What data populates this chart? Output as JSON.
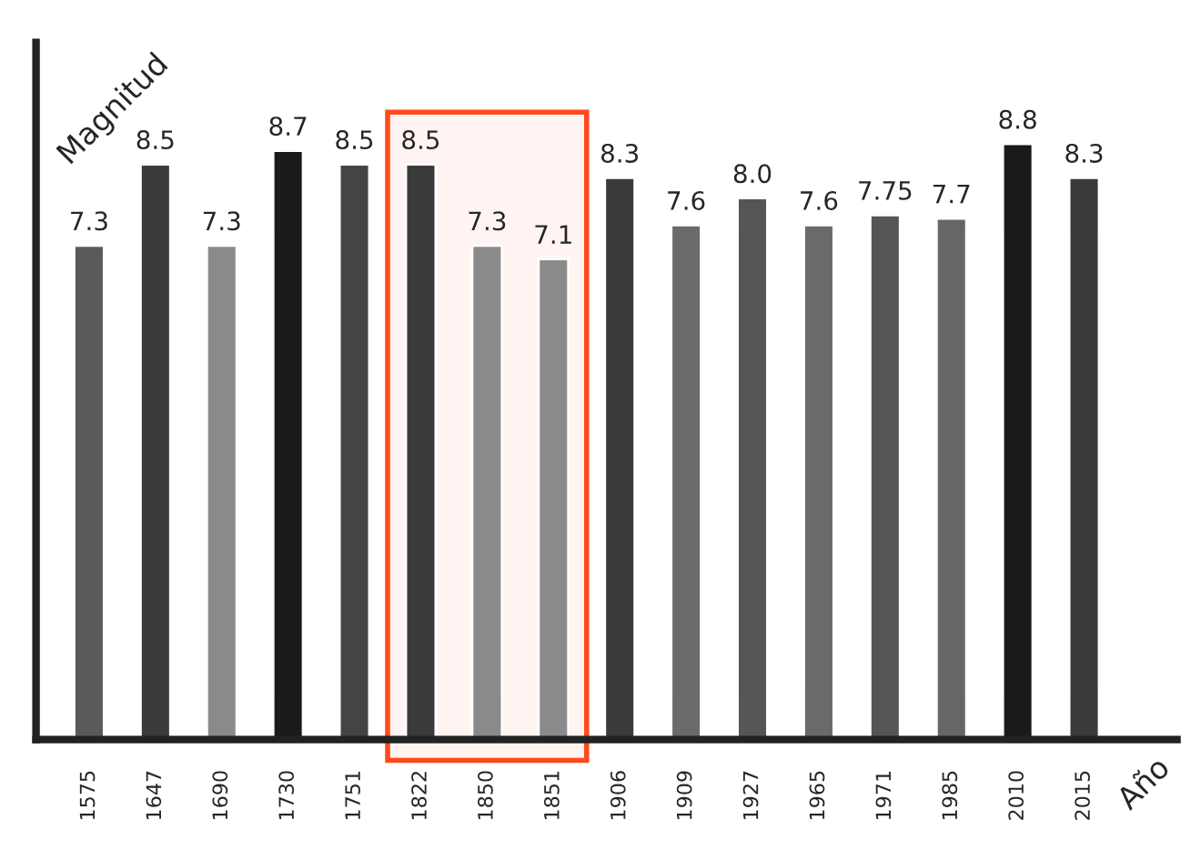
{
  "chart_data": {
    "type": "bar",
    "xlabel": "Año",
    "ylabel": "Magnitud",
    "categories": [
      "1575",
      "1647",
      "1690",
      "1730",
      "1751",
      "1822",
      "1850",
      "1851",
      "1906",
      "1909",
      "1927",
      "1965",
      "1971",
      "1985",
      "2010",
      "2015"
    ],
    "values": [
      7.3,
      8.5,
      7.3,
      8.7,
      8.5,
      8.5,
      7.3,
      7.1,
      8.3,
      7.6,
      8.0,
      7.6,
      7.75,
      7.7,
      8.8,
      8.3
    ],
    "value_labels": [
      "7.3",
      "8.5",
      "7.3",
      "8.7",
      "8.5",
      "8.5",
      "7.3",
      "7.1",
      "8.3",
      "7.6",
      "8.0",
      "7.6",
      "7.75",
      "7.7",
      "8.8",
      "8.3"
    ],
    "colors": [
      "#5a5a5a",
      "#3a3a3a",
      "#8a8a8a",
      "#1a1a1a",
      "#444444",
      "#3a3a3a",
      "#8a8a8a",
      "#8a8a8a",
      "#3a3a3a",
      "#6a6a6a",
      "#555555",
      "#6a6a6a",
      "#555555",
      "#666666",
      "#1a1a1a",
      "#3a3a3a"
    ],
    "ylim": [
      0,
      10.3
    ],
    "tick_labels": "x",
    "bands": [
      {
        "axis": "x",
        "from": "1822",
        "to": "1851",
        "color": "#ff4a1c"
      }
    ],
    "grid": false,
    "legend": false
  }
}
